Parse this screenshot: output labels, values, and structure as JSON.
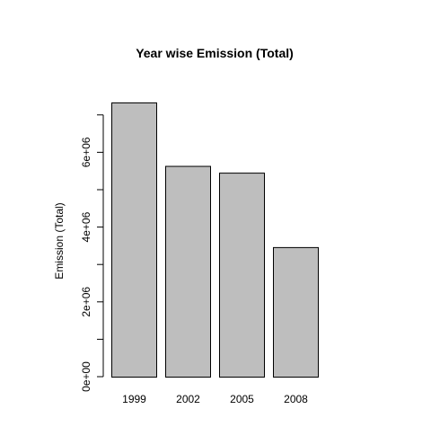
{
  "chart_data": {
    "type": "bar",
    "title": "Year wise Emission (Total)",
    "xlabel": "",
    "ylabel": "Emission (Total)",
    "categories": [
      "1999",
      "2002",
      "2005",
      "2008"
    ],
    "values": [
      7332967,
      5635780,
      5454703,
      3464206
    ],
    "ylim": [
      0,
      7000000
    ],
    "y_tick_labels": [
      "0e+00",
      "2e+06",
      "4e+06",
      "6e+06"
    ],
    "y_tick_values": [
      0,
      2000000,
      4000000,
      6000000
    ],
    "y_minor_tick_values": [
      1000000,
      3000000,
      5000000,
      7000000
    ],
    "bar_fill": "#bebebe",
    "bar_stroke": "#000000",
    "grid": false,
    "legend": "none"
  }
}
